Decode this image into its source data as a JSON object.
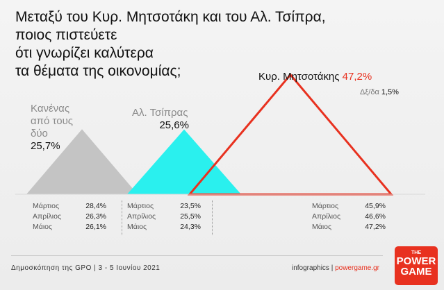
{
  "title": {
    "lines": [
      "Μεταξύ του Κυρ. Μητσοτάκη και του Αλ. Τσίπρα,",
      "ποιος πιστεύετε",
      "ότι γνωρίζει καλύτερα",
      "τα θέματα της οικονομίας;"
    ]
  },
  "chart_data": {
    "type": "area",
    "series": [
      {
        "name": "Κανένας από τους δύο",
        "value": 25.7,
        "value_label": "25,7%",
        "color": "#c4c4c4"
      },
      {
        "name": "Αλ. Τσίπρας",
        "value": 25.6,
        "value_label": "25,6%",
        "color": "#2af0ee"
      },
      {
        "name": "Κυρ. Μητσοτάκης",
        "value": 47.2,
        "value_label": "47,2%",
        "color": "#e8311f"
      }
    ],
    "dkd": {
      "label": "Δξ/δα",
      "value": 1.5,
      "value_label": "1,5%"
    },
    "history": [
      {
        "series": "Κανένας από τους δύο",
        "rows": [
          {
            "month": "Μάρτιος",
            "value": "28,4%"
          },
          {
            "month": "Απρίλιος",
            "value": "26,3%"
          },
          {
            "month": "Μάιος",
            "value": "26,1%"
          }
        ]
      },
      {
        "series": "Αλ. Τσίπρας",
        "rows": [
          {
            "month": "Μάρτιος",
            "value": "23,5%"
          },
          {
            "month": "Απρίλιος",
            "value": "25,5%"
          },
          {
            "month": "Μάιος",
            "value": "24,3%"
          }
        ]
      },
      {
        "series": "Κυρ. Μητσοτάκης",
        "rows": [
          {
            "month": "Μάρτιος",
            "value": "45,9%"
          },
          {
            "month": "Απρίλιος",
            "value": "46,6%"
          },
          {
            "month": "Μάιος",
            "value": "47,2%"
          }
        ]
      }
    ]
  },
  "labels": {
    "none_line1": "Κανένας",
    "none_line2": "από τους",
    "none_line3": "δύο",
    "tsipras": "Αλ. Τσίπρας",
    "mitsotakis": "Κυρ. Μητσοτάκης"
  },
  "footer": {
    "source": "Δημοσκόπηση της GPO | 3 - 5 Ιουνίου 2021",
    "credit": "infographics | ",
    "site": "powergame.gr"
  },
  "logo": {
    "the": "THE",
    "line1": "POWER",
    "line2": "GAME"
  }
}
